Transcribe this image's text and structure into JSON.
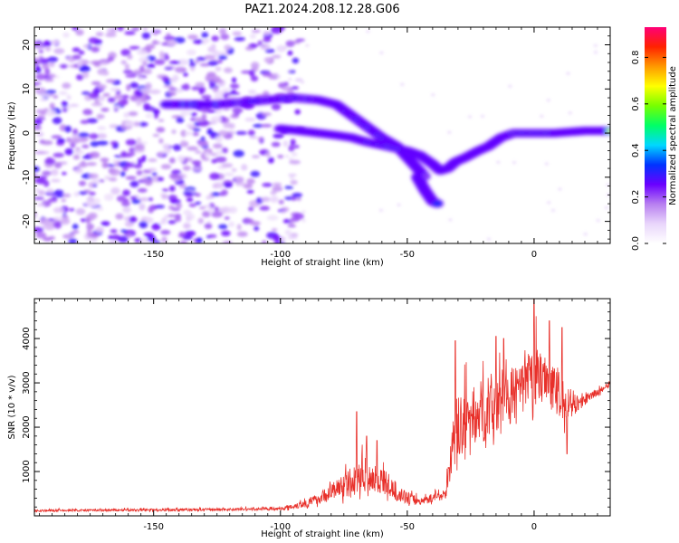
{
  "figure": {
    "title": "PAZ1.2024.208.12.28.G06"
  },
  "chart_data": [
    {
      "type": "heatmap",
      "xlabel": "Height of straight line (km)",
      "ylabel": "Frequency (Hz)",
      "xlim": [
        -197,
        30
      ],
      "ylim": [
        -25,
        24
      ],
      "xticks": [
        -150,
        -100,
        -50,
        0
      ],
      "yticks": [
        -20,
        -10,
        0,
        10,
        20
      ],
      "colorbar": {
        "label": "Normalized spectral amplitude",
        "range": [
          0.0,
          0.93
        ],
        "ticks": [
          0.0,
          0.2,
          0.4,
          0.6,
          0.8
        ],
        "colors": [
          "#ffffff",
          "#e9d6fb",
          "#b87ff0",
          "#6a00ff",
          "#0033ff",
          "#00d8ff",
          "#00ff66",
          "#77ff00",
          "#ffff00",
          "#ff9900",
          "#ff2200",
          "#ff0077"
        ]
      },
      "ridges": [
        {
          "name": "upper trace",
          "points": [
            [
              -145,
              6.5
            ],
            [
              -135,
              6.5
            ],
            [
              -125,
              6.5
            ],
            [
              -115,
              7
            ],
            [
              -105,
              7.5
            ],
            [
              -95,
              8
            ],
            [
              -85,
              7.5
            ],
            [
              -78,
              6.5
            ],
            [
              -72,
              4
            ],
            [
              -66,
              1.5
            ],
            [
              -60,
              -1
            ],
            [
              -54,
              -3
            ],
            [
              -50,
              -5.5
            ],
            [
              -46,
              -8
            ],
            [
              -43,
              -10
            ]
          ],
          "amplitudes": [
            0.3,
            0.45,
            0.4,
            0.3,
            0.35,
            0.3,
            0.3,
            0.3,
            0.35,
            0.4,
            0.5,
            0.55,
            0.5,
            0.4,
            0.3
          ]
        },
        {
          "name": "lower trace",
          "points": [
            [
              -100,
              1
            ],
            [
              -92,
              0.5
            ],
            [
              -85,
              0
            ],
            [
              -78,
              -0.5
            ],
            [
              -72,
              -1
            ],
            [
              -66,
              -2
            ],
            [
              -58,
              -3
            ],
            [
              -50,
              -4
            ],
            [
              -45,
              -5
            ],
            [
              -40,
              -7
            ],
            [
              -37,
              -8.5
            ],
            [
              -34,
              -8
            ],
            [
              -31,
              -6.5
            ],
            [
              -27,
              -5.5
            ],
            [
              -22,
              -4
            ],
            [
              -18,
              -3
            ],
            [
              -13,
              -1
            ],
            [
              -8,
              0
            ],
            [
              0,
              0
            ],
            [
              8,
              0
            ],
            [
              15,
              0.3
            ],
            [
              20,
              0.5
            ],
            [
              27,
              0.5
            ],
            [
              30,
              0.5
            ]
          ],
          "amplitudes": [
            0.3,
            0.5,
            0.7,
            0.5,
            0.45,
            0.4,
            0.45,
            0.45,
            0.4,
            0.4,
            0.45,
            0.45,
            0.5,
            0.55,
            0.6,
            0.6,
            0.6,
            0.75,
            0.65,
            0.6,
            0.65,
            0.75,
            0.7,
            0.6
          ]
        },
        {
          "name": "low branch",
          "points": [
            [
              -46,
              -10
            ],
            [
              -43,
              -13
            ],
            [
              -40,
              -15.5
            ],
            [
              -38,
              -16
            ]
          ],
          "amplitudes": [
            0.35,
            0.45,
            0.5,
            0.4
          ]
        }
      ],
      "noise_region": {
        "xrange": [
          -197,
          -100
        ],
        "frange": [
          -25,
          24
        ],
        "amplitude": [
          0.1,
          0.3
        ]
      }
    },
    {
      "type": "line",
      "xlabel": "Height of straight line (km)",
      "ylabel": "SNR (10 * v/v)",
      "xlim": [
        -197,
        30
      ],
      "ylim": [
        0,
        4900
      ],
      "xticks": [
        -150,
        -100,
        -50,
        0
      ],
      "yticks": [
        1000,
        2000,
        3000,
        4000
      ],
      "color": "#e8302a",
      "envelope": [
        {
          "x": -197,
          "base": 110,
          "amp": 60
        },
        {
          "x": -130,
          "base": 130,
          "amp": 80
        },
        {
          "x": -100,
          "base": 150,
          "amp": 80
        },
        {
          "x": -90,
          "base": 250,
          "amp": 250
        },
        {
          "x": -85,
          "base": 350,
          "amp": 300
        },
        {
          "x": -75,
          "base": 600,
          "amp": 700
        },
        {
          "x": -68,
          "base": 800,
          "amp": 900
        },
        {
          "x": -60,
          "base": 700,
          "amp": 800
        },
        {
          "x": -52,
          "base": 400,
          "amp": 400
        },
        {
          "x": -45,
          "base": 300,
          "amp": 200
        },
        {
          "x": -35,
          "base": 450,
          "amp": 300
        },
        {
          "x": -31,
          "base": 1700,
          "amp": 1800
        },
        {
          "x": -25,
          "base": 2000,
          "amp": 1700
        },
        {
          "x": -15,
          "base": 2300,
          "amp": 1900
        },
        {
          "x": -5,
          "base": 2700,
          "amp": 1300
        },
        {
          "x": 0,
          "base": 2900,
          "amp": 1900
        },
        {
          "x": 5,
          "base": 3000,
          "amp": 1200
        },
        {
          "x": 12,
          "base": 2400,
          "amp": 1500
        },
        {
          "x": 18,
          "base": 2500,
          "amp": 300
        },
        {
          "x": 30,
          "base": 2950,
          "amp": 150
        }
      ],
      "peaks": [
        {
          "x": -70,
          "y": 2350
        },
        {
          "x": -66,
          "y": 1800
        },
        {
          "x": -62,
          "y": 1700
        },
        {
          "x": -31,
          "y": 3950
        },
        {
          "x": -15,
          "y": 4050
        },
        {
          "x": -12,
          "y": 4000
        },
        {
          "x": 0,
          "y": 4900
        },
        {
          "x": 6,
          "y": 4400
        },
        {
          "x": 11,
          "y": 4250
        },
        {
          "x": 13,
          "y": 1400
        }
      ]
    }
  ]
}
